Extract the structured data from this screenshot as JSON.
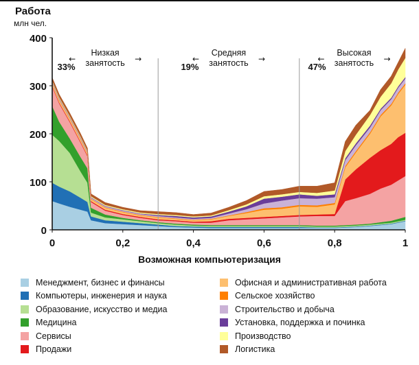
{
  "chart_data": {
    "type": "area",
    "title": "",
    "ylabel": "Работа",
    "yunit": "млн чел.",
    "xlabel": "Возможная компьютеризация",
    "xlim": [
      0,
      1
    ],
    "ylim": [
      0,
      400
    ],
    "x_ticks": [
      "0",
      "0,2",
      "0,4",
      "0,6",
      "0,8",
      "1"
    ],
    "y_ticks": [
      "0",
      "100",
      "200",
      "300",
      "400"
    ],
    "x": [
      0,
      0.02,
      0.05,
      0.08,
      0.1,
      0.11,
      0.15,
      0.2,
      0.25,
      0.3,
      0.35,
      0.4,
      0.45,
      0.5,
      0.55,
      0.6,
      0.65,
      0.7,
      0.75,
      0.8,
      0.83,
      0.86,
      0.9,
      0.93,
      0.96,
      0.98,
      1.0
    ],
    "series": [
      {
        "name": "Менеджмент, бизнес и финансы",
        "color": "#a9cfe3",
        "values": [
          60,
          55,
          48,
          42,
          38,
          20,
          14,
          12,
          10,
          8,
          6,
          5,
          4,
          4,
          4,
          4,
          4,
          4,
          4,
          4,
          5,
          6,
          8,
          10,
          12,
          15,
          18
        ]
      },
      {
        "name": "Компьютеры, инженерия и наука",
        "color": "#2170b5",
        "values": [
          38,
          35,
          32,
          25,
          20,
          8,
          6,
          5,
          4,
          3,
          2,
          2,
          2,
          2,
          2,
          2,
          2,
          2,
          1,
          1,
          1,
          1,
          1,
          1,
          1,
          1,
          1
        ]
      },
      {
        "name": "Образование, искусство и медиа",
        "color": "#b6df93",
        "values": [
          100,
          95,
          80,
          55,
          40,
          8,
          6,
          5,
          4,
          3,
          3,
          2,
          2,
          2,
          2,
          2,
          2,
          2,
          2,
          2,
          2,
          2,
          2,
          2,
          2,
          2,
          2
        ]
      },
      {
        "name": "Медицина",
        "color": "#33a02c",
        "values": [
          60,
          40,
          30,
          30,
          30,
          10,
          6,
          3,
          2,
          2,
          2,
          2,
          2,
          2,
          2,
          2,
          2,
          2,
          2,
          2,
          2,
          2,
          2,
          3,
          4,
          5,
          6
        ]
      },
      {
        "name": "Сервисы",
        "color": "#f4a3a3",
        "values": [
          40,
          38,
          34,
          30,
          25,
          12,
          8,
          6,
          5,
          4,
          5,
          4,
          5,
          10,
          12,
          14,
          16,
          18,
          20,
          20,
          50,
          55,
          62,
          70,
          75,
          80,
          85
        ]
      },
      {
        "name": "Продажи",
        "color": "#e31a1c",
        "values": [
          2,
          2,
          2,
          2,
          2,
          2,
          2,
          2,
          2,
          2,
          2,
          2,
          3,
          3,
          3,
          3,
          3,
          3,
          3,
          4,
          45,
          60,
          75,
          80,
          85,
          90,
          90
        ]
      },
      {
        "name": "Офисная и административная работа",
        "color": "#fdbf6f",
        "values": [
          5,
          5,
          5,
          5,
          4,
          4,
          4,
          4,
          3,
          4,
          3,
          3,
          4,
          6,
          10,
          15,
          15,
          18,
          16,
          20,
          25,
          35,
          50,
          70,
          80,
          90,
          100
        ]
      },
      {
        "name": "Сельское хозяйство",
        "color": "#ff7f00",
        "values": [
          1,
          1,
          1,
          1,
          1,
          1,
          1,
          1,
          1,
          1,
          1,
          1,
          1,
          1,
          2,
          3,
          3,
          3,
          3,
          3,
          3,
          3,
          3,
          3,
          3,
          3,
          3
        ]
      },
      {
        "name": "Строительство и добыча",
        "color": "#cab2d6",
        "values": [
          2,
          2,
          2,
          2,
          2,
          2,
          2,
          2,
          2,
          2,
          2,
          2,
          2,
          4,
          6,
          10,
          14,
          14,
          14,
          12,
          12,
          12,
          10,
          10,
          10,
          10,
          10
        ]
      },
      {
        "name": "Установка, поддержка и починка",
        "color": "#6a3d9a",
        "values": [
          1,
          1,
          1,
          1,
          1,
          1,
          1,
          1,
          1,
          2,
          3,
          3,
          3,
          4,
          6,
          10,
          8,
          8,
          6,
          6,
          4,
          4,
          4,
          3,
          3,
          3,
          3
        ]
      },
      {
        "name": "Производство",
        "color": "#ffff99",
        "values": [
          2,
          2,
          2,
          2,
          2,
          2,
          2,
          2,
          2,
          2,
          2,
          2,
          2,
          3,
          4,
          5,
          5,
          5,
          6,
          8,
          15,
          18,
          22,
          25,
          30,
          35,
          40
        ]
      },
      {
        "name": "Логистика",
        "color": "#b15928",
        "values": [
          6,
          6,
          6,
          6,
          5,
          5,
          5,
          4,
          4,
          5,
          5,
          4,
          5,
          6,
          8,
          10,
          10,
          12,
          14,
          16,
          20,
          20,
          10,
          15,
          15,
          15,
          20
        ]
      }
    ],
    "vlines": [
      0.3,
      0.7
    ],
    "annotations": [
      {
        "text": "33%",
        "x": 0.04,
        "y": 340
      },
      {
        "text": "19%",
        "x": 0.39,
        "y": 340
      },
      {
        "text": "47%",
        "x": 0.75,
        "y": 340
      }
    ],
    "zones": [
      {
        "label": "Низкая\nзанятость",
        "x": 0.15
      },
      {
        "label": "Средняя\nзанятость",
        "x": 0.5
      },
      {
        "label": "Высокая\nзанятость",
        "x": 0.855
      }
    ]
  }
}
